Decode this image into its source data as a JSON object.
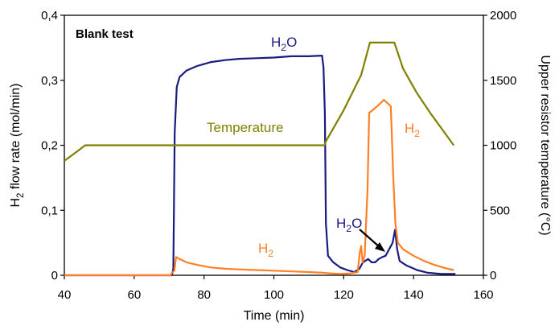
{
  "chart_data": {
    "type": "line",
    "title": "",
    "annotation_title": "Blank test",
    "xlabel": "Time (min)",
    "xlim": [
      40,
      160
    ],
    "x_ticks": [
      40,
      60,
      80,
      100,
      120,
      140,
      160
    ],
    "ylabel_left": {
      "main": "H",
      "sub": "2",
      "rest": " flow rate (mol/min)"
    },
    "ylim_left": [
      0,
      0.4
    ],
    "y_ticks_left": [
      "0",
      "0,1",
      "0,2",
      "0,3",
      "0,4"
    ],
    "ylabel_right": "Upper resistor temperature (°C)",
    "ylim_right": [
      0,
      2000
    ],
    "y_ticks_right": [
      "0",
      "500",
      "1000",
      "1500",
      "2000"
    ],
    "grid": false,
    "legend": "none",
    "series": [
      {
        "key": "h2o",
        "name": "H2O",
        "axis": "left",
        "color": "#1a1a80",
        "points": [
          [
            40,
            0
          ],
          [
            70.8,
            0
          ],
          [
            71.2,
            0.01
          ],
          [
            71.6,
            0.22
          ],
          [
            72.2,
            0.29
          ],
          [
            73,
            0.305
          ],
          [
            75,
            0.315
          ],
          [
            78,
            0.322
          ],
          [
            82,
            0.328
          ],
          [
            86,
            0.331
          ],
          [
            90,
            0.333
          ],
          [
            95,
            0.334
          ],
          [
            100,
            0.335
          ],
          [
            105,
            0.337
          ],
          [
            110,
            0.337
          ],
          [
            113.8,
            0.338
          ],
          [
            114.2,
            0.32
          ],
          [
            114.6,
            0.25
          ],
          [
            114.9,
            0.08
          ],
          [
            115.5,
            0.03
          ],
          [
            117,
            0.02
          ],
          [
            119,
            0.012
          ],
          [
            121,
            0.008
          ],
          [
            123,
            0.005
          ],
          [
            124.5,
            0.01
          ],
          [
            125.5,
            0.02
          ],
          [
            127,
            0.025
          ],
          [
            128,
            0.02
          ],
          [
            129,
            0.02
          ],
          [
            130,
            0.025
          ],
          [
            131,
            0.028
          ],
          [
            132,
            0.03
          ],
          [
            133,
            0.04
          ],
          [
            134,
            0.05
          ],
          [
            134.7,
            0.07
          ],
          [
            135.3,
            0.04
          ],
          [
            136,
            0.022
          ],
          [
            138,
            0.015
          ],
          [
            141,
            0.008
          ],
          [
            144,
            0.004
          ],
          [
            148,
            0.002
          ],
          [
            152,
            0.002
          ]
        ]
      },
      {
        "key": "h2",
        "name": "H2",
        "axis": "left",
        "color": "#ff7f24",
        "points": [
          [
            40,
            0
          ],
          [
            70.5,
            0
          ],
          [
            70.8,
            0.004
          ],
          [
            71.5,
            0.007
          ],
          [
            72,
            0.028
          ],
          [
            73,
            0.025
          ],
          [
            75,
            0.02
          ],
          [
            78,
            0.016
          ],
          [
            82,
            0.012
          ],
          [
            86,
            0.01
          ],
          [
            90,
            0.009
          ],
          [
            95,
            0.008
          ],
          [
            100,
            0.007
          ],
          [
            105,
            0.006
          ],
          [
            110,
            0.005
          ],
          [
            114,
            0.004
          ],
          [
            116,
            0.003
          ],
          [
            119,
            0.002
          ],
          [
            122,
            0.003
          ],
          [
            124,
            0.005
          ],
          [
            124.6,
            0.035
          ],
          [
            125,
            0.045
          ],
          [
            125.4,
            0.02
          ],
          [
            126,
            0.03
          ],
          [
            126.8,
            0.13
          ],
          [
            127.3,
            0.25
          ],
          [
            128.5,
            0.255
          ],
          [
            130,
            0.262
          ],
          [
            131.5,
            0.27
          ],
          [
            132.5,
            0.265
          ],
          [
            133.5,
            0.26
          ],
          [
            134.2,
            0.15
          ],
          [
            134.8,
            0.08
          ],
          [
            135.5,
            0.05
          ],
          [
            137,
            0.04
          ],
          [
            140,
            0.03
          ],
          [
            143,
            0.022
          ],
          [
            146,
            0.016
          ],
          [
            149,
            0.011
          ],
          [
            151.5,
            0.008
          ]
        ]
      },
      {
        "key": "temperature",
        "name": "Temperature",
        "axis": "right",
        "color": "#808000",
        "points": [
          [
            40,
            880
          ],
          [
            44,
            960
          ],
          [
            46,
            1000
          ],
          [
            60,
            1000
          ],
          [
            80,
            1000
          ],
          [
            100,
            1000
          ],
          [
            114.5,
            1000
          ],
          [
            115,
            1035
          ],
          [
            120,
            1270
          ],
          [
            125,
            1540
          ],
          [
            127.5,
            1790
          ],
          [
            134.5,
            1790
          ],
          [
            137,
            1590
          ],
          [
            141,
            1400
          ],
          [
            145,
            1240
          ],
          [
            148,
            1130
          ],
          [
            151.5,
            1000
          ]
        ]
      }
    ],
    "annotations": {
      "h2o_top": {
        "main": "H",
        "sub": "2",
        "rest": "O"
      },
      "h2o_arrow": {
        "main": "H",
        "sub": "2",
        "rest": "O"
      },
      "h2_left": {
        "main": "H",
        "sub": "2",
        "rest": ""
      },
      "h2_right": {
        "main": "H",
        "sub": "2",
        "rest": ""
      },
      "temperature": "Temperature"
    }
  }
}
